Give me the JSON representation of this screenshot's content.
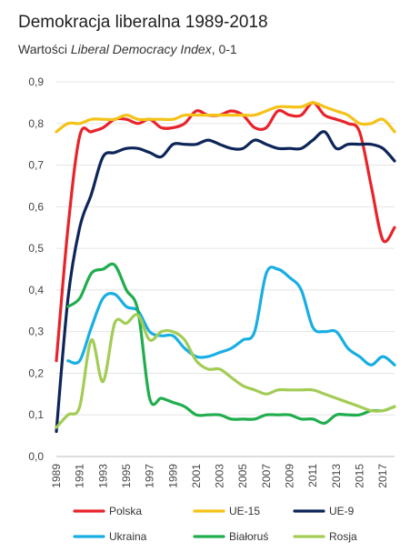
{
  "title": "Demokracja liberalna 1989-2018",
  "subtitle": {
    "prefix": "Wartości ",
    "emphasis": "Liberal Democracy Index",
    "suffix": ", 0-1"
  },
  "chart_data": {
    "type": "line",
    "ylim": [
      0,
      0.9
    ],
    "y_ticks": [
      "0,0",
      "0,1",
      "0,2",
      "0,3",
      "0,4",
      "0,5",
      "0,6",
      "0,7",
      "0,8",
      "0,9"
    ],
    "x_ticks": [
      "1989",
      "1991",
      "1993",
      "1995",
      "1997",
      "1999",
      "2001",
      "2003",
      "2005",
      "2007",
      "2009",
      "2011",
      "2013",
      "2015",
      "2017"
    ],
    "x": [
      1989,
      1990,
      1991,
      1992,
      1993,
      1994,
      1995,
      1996,
      1997,
      1998,
      1999,
      2000,
      2001,
      2002,
      2003,
      2004,
      2005,
      2006,
      2007,
      2008,
      2009,
      2010,
      2011,
      2012,
      2013,
      2014,
      2015,
      2016,
      2017,
      2018
    ],
    "grid": true,
    "legend_position": "bottom",
    "series": [
      {
        "name": "Polska",
        "color": "#e8232a",
        "values": [
          0.23,
          0.55,
          0.77,
          0.78,
          0.79,
          0.81,
          0.81,
          0.8,
          0.81,
          0.79,
          0.79,
          0.8,
          0.83,
          0.82,
          0.82,
          0.83,
          0.82,
          0.79,
          0.79,
          0.83,
          0.82,
          0.82,
          0.85,
          0.82,
          0.81,
          0.8,
          0.78,
          0.65,
          0.52,
          0.55
        ]
      },
      {
        "name": "UE-15",
        "color": "#f5c218",
        "values": [
          0.78,
          0.8,
          0.8,
          0.81,
          0.81,
          0.81,
          0.82,
          0.81,
          0.81,
          0.81,
          0.81,
          0.82,
          0.82,
          0.82,
          0.82,
          0.82,
          0.82,
          0.82,
          0.83,
          0.84,
          0.84,
          0.84,
          0.85,
          0.84,
          0.83,
          0.82,
          0.8,
          0.8,
          0.81,
          0.78
        ]
      },
      {
        "name": "UE-9",
        "color": "#0d2558",
        "values": [
          0.06,
          0.38,
          0.55,
          0.63,
          0.72,
          0.73,
          0.74,
          0.74,
          0.73,
          0.72,
          0.75,
          0.75,
          0.75,
          0.76,
          0.75,
          0.74,
          0.74,
          0.76,
          0.75,
          0.74,
          0.74,
          0.74,
          0.76,
          0.78,
          0.74,
          0.75,
          0.75,
          0.75,
          0.74,
          0.71
        ]
      },
      {
        "name": "Ukraina",
        "color": "#19aee3",
        "values": [
          null,
          0.23,
          0.23,
          0.31,
          0.38,
          0.39,
          0.36,
          0.35,
          0.3,
          0.29,
          0.29,
          0.26,
          0.24,
          0.24,
          0.25,
          0.26,
          0.28,
          0.3,
          0.44,
          0.45,
          0.43,
          0.4,
          0.31,
          0.3,
          0.3,
          0.26,
          0.24,
          0.22,
          0.24,
          0.22
        ]
      },
      {
        "name": "Białoruś",
        "color": "#1fad4d",
        "values": [
          null,
          0.36,
          0.38,
          0.44,
          0.45,
          0.46,
          0.4,
          0.35,
          0.14,
          0.14,
          0.13,
          0.12,
          0.1,
          0.1,
          0.1,
          0.09,
          0.09,
          0.09,
          0.1,
          0.1,
          0.1,
          0.09,
          0.09,
          0.08,
          0.1,
          0.1,
          0.1,
          0.11,
          0.11,
          0.12
        ]
      },
      {
        "name": "Rosja",
        "color": "#a3cc55",
        "values": [
          0.07,
          0.1,
          0.12,
          0.28,
          0.18,
          0.32,
          0.32,
          0.34,
          0.28,
          0.3,
          0.3,
          0.28,
          0.23,
          0.21,
          0.21,
          0.19,
          0.17,
          0.16,
          0.15,
          0.16,
          0.16,
          0.16,
          0.16,
          0.15,
          0.14,
          0.13,
          0.12,
          0.11,
          0.11,
          0.12
        ]
      }
    ]
  }
}
